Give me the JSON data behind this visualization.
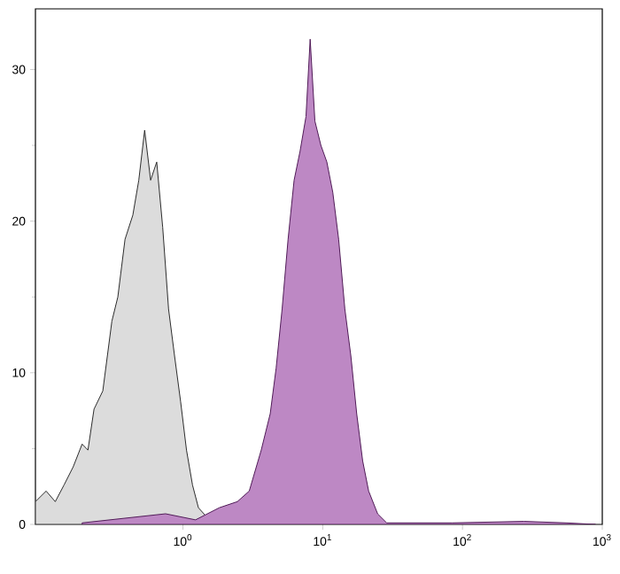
{
  "chart_data": {
    "type": "area",
    "log": "x",
    "xlim": [
      0.088,
      1000
    ],
    "ylim": [
      0,
      34
    ],
    "xticks": [
      {
        "value": 1,
        "label": "10$^{0}$"
      },
      {
        "value": 10,
        "label": "10$^{1}$"
      },
      {
        "value": 100,
        "label": "10$^{2}$"
      },
      {
        "value": 1000,
        "label": "10$^{3}$"
      }
    ],
    "yticks": [
      0,
      10,
      20,
      30
    ],
    "series": [
      {
        "color": "#dcdcdc",
        "x": [
          0.088,
          0.105,
          0.122,
          0.141,
          0.164,
          0.19,
          0.209,
          0.231,
          0.267,
          0.31,
          0.342,
          0.385,
          0.438,
          0.483,
          0.532,
          0.587,
          0.649,
          0.716,
          0.789,
          0.871,
          0.962,
          1.06,
          1.17,
          1.29,
          1.65
        ],
        "values": [
          1.5,
          2.2,
          1.5,
          2.6,
          3.8,
          5.3,
          4.9,
          7.6,
          8.8,
          13.4,
          15.0,
          18.8,
          20.4,
          22.7,
          26.0,
          22.7,
          23.9,
          19.6,
          14.2,
          11.1,
          8.1,
          4.9,
          2.6,
          1.1,
          0
        ]
      },
      {
        "color": "#bd88c4",
        "x": [
          0.19,
          0.751,
          1.23,
          1.82,
          2.45,
          2.98,
          3.63,
          4.21,
          4.64,
          5.12,
          5.65,
          6.24,
          6.88,
          7.59,
          8.13,
          8.79,
          9.7,
          10.7,
          11.8,
          13.0,
          14.4,
          15.9,
          17.5,
          19.3,
          21.3,
          24.7,
          28.7,
          46.9,
          84.6,
          275,
          550,
          895
        ],
        "values": [
          0.1,
          0.7,
          0.3,
          1.1,
          1.5,
          2.2,
          4.9,
          7.3,
          10.3,
          14.2,
          18.8,
          22.7,
          24.6,
          26.9,
          32.0,
          26.6,
          25.0,
          23.9,
          21.9,
          18.8,
          14.2,
          11.1,
          7.3,
          4.2,
          2.2,
          0.7,
          0.1,
          0.1,
          0.1,
          0.2,
          0.1,
          0
        ]
      }
    ]
  }
}
